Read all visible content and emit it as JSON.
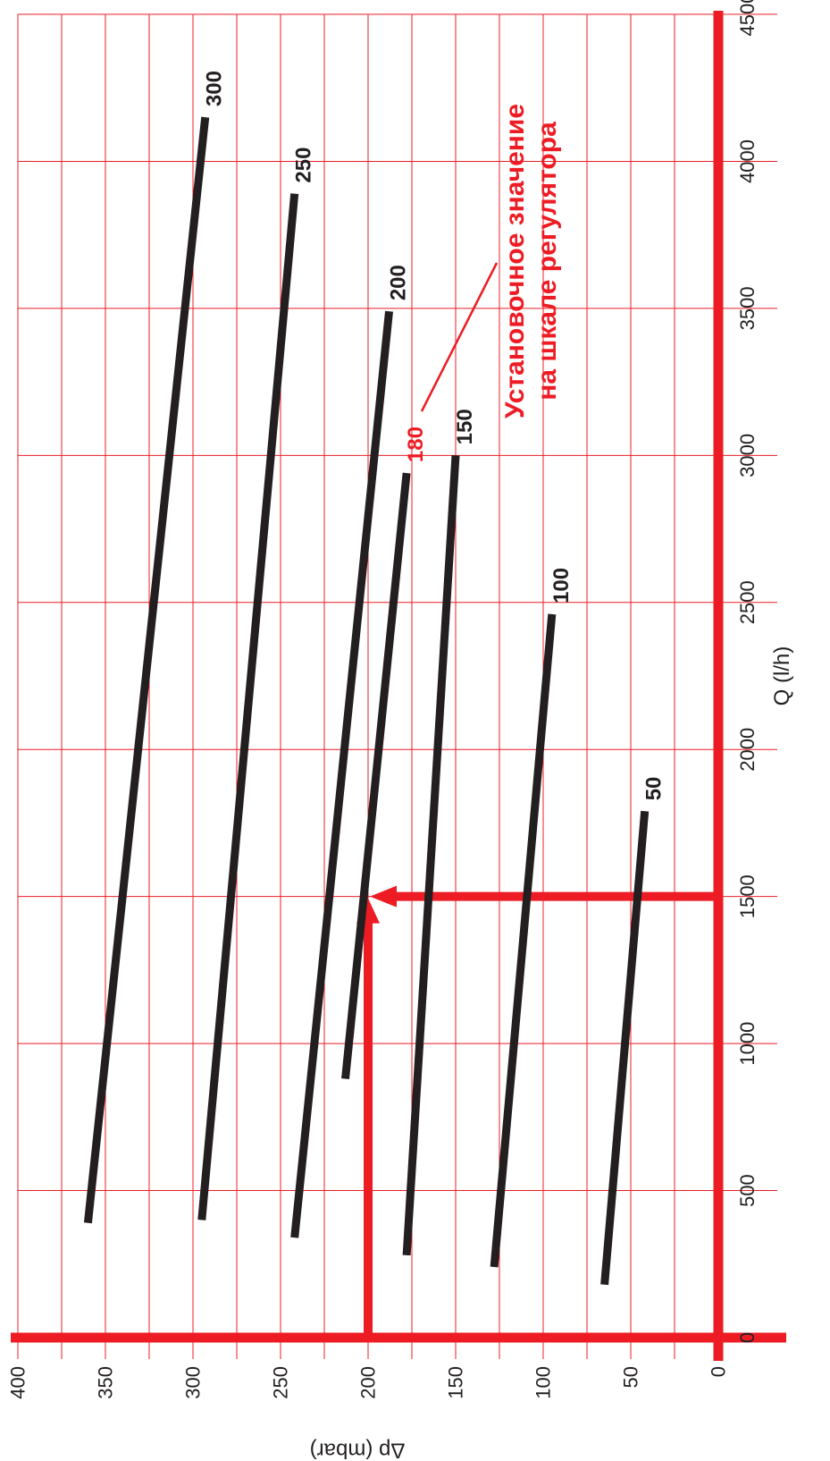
{
  "chart_data": {
    "type": "line",
    "title": "",
    "xlabel": "Q (l/h)",
    "ylabel": "Δp (mbar)",
    "xlim": [
      0,
      4500
    ],
    "ylim": [
      0,
      400
    ],
    "x_ticks": [
      "0",
      "500",
      "1000",
      "1500",
      "2000",
      "2500",
      "3000",
      "3500",
      "4000",
      "4500"
    ],
    "y_ticks": [
      "0",
      "50",
      "100",
      "150",
      "200",
      "250",
      "300",
      "350",
      "400"
    ],
    "grid": true,
    "orientation": "rotated 90° clockwise",
    "series": [
      {
        "name": "50",
        "x": [
          180,
          1790
        ],
        "y": [
          65,
          42
        ],
        "color": "#231f20"
      },
      {
        "name": "100",
        "x": [
          240,
          2460
        ],
        "y": [
          128,
          95
        ],
        "color": "#231f20"
      },
      {
        "name": "150",
        "x": [
          280,
          3000
        ],
        "y": [
          178,
          150
        ],
        "color": "#231f20"
      },
      {
        "name": "180",
        "x": [
          880,
          2940
        ],
        "y": [
          213,
          178
        ],
        "color": "#231f20"
      },
      {
        "name": "200",
        "x": [
          340,
          3490
        ],
        "y": [
          242,
          188
        ],
        "color": "#231f20"
      },
      {
        "name": "250",
        "x": [
          400,
          3890
        ],
        "y": [
          295,
          242
        ],
        "color": "#231f20"
      },
      {
        "name": "300",
        "x": [
          390,
          4150
        ],
        "y": [
          360,
          293
        ],
        "color": "#231f20"
      }
    ],
    "highlighted_series": "180",
    "example": {
      "q": 1500,
      "dp": 200,
      "color": "#ed1c24"
    },
    "annotation": [
      "Установочное значение",
      "на шкале регулятора"
    ],
    "colors": {
      "grid": "#ed1c24",
      "series": "#231f20",
      "highlight": "#ed1c24",
      "text": "#231f20"
    }
  }
}
